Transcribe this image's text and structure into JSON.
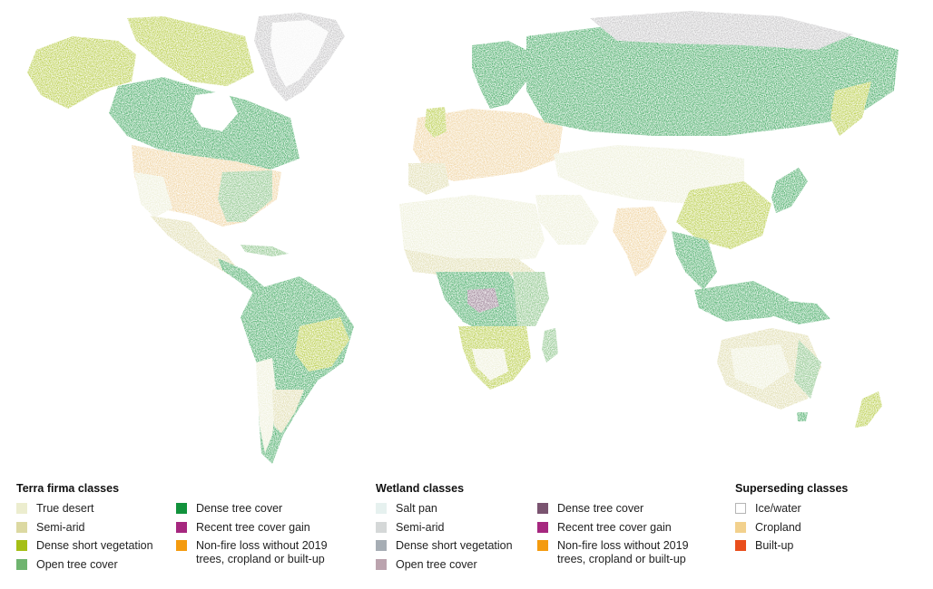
{
  "map": {
    "land_colors": {
      "desert": "#e9ebce",
      "semiarid": "#d8d49b",
      "short_veg": "#a7c11c",
      "open_tree": "#6eb56b",
      "dense_tree": "#1a9640",
      "cropland": "#ecc98a",
      "ice": "#f4f4f4",
      "tundra": "#b7b6b8",
      "builtup": "#e84d27",
      "wetland": "#7c5a74"
    }
  },
  "legend": {
    "groups": [
      {
        "id": "terra",
        "title": "Terra firma classes",
        "columns": [
          [
            {
              "label": "True desert",
              "color": "#ecedcf"
            },
            {
              "label": "Semi-arid",
              "color": "#dcd9a2"
            },
            {
              "label": "Dense short vegetation",
              "color": "#a5bf16"
            },
            {
              "label": "Open tree cover",
              "color": "#6fb46f"
            }
          ],
          [
            {
              "label": "Dense tree cover",
              "color": "#12923c"
            },
            {
              "label": "Recent tree cover gain",
              "color": "#a6277f"
            },
            {
              "label": "Non-fire loss without 2019\ntrees, cropland or built-up",
              "color": "#f49b0f"
            }
          ]
        ]
      },
      {
        "id": "wetland",
        "title": "Wetland classes",
        "columns": [
          [
            {
              "label": "Salt pan",
              "color": "#e6f1ef"
            },
            {
              "label": "Semi-arid",
              "color": "#d5d8d8"
            },
            {
              "label": "Dense short vegetation",
              "color": "#a6adb4"
            },
            {
              "label": "Open tree cover",
              "color": "#bba3ae"
            }
          ],
          [
            {
              "label": "Dense tree cover",
              "color": "#7a5470"
            },
            {
              "label": "Recent tree cover gain",
              "color": "#a6277f"
            },
            {
              "label": "Non-fire loss without 2019\ntrees, cropland or built-up",
              "color": "#f49b0f"
            }
          ]
        ]
      },
      {
        "id": "superseding",
        "title": "Superseding classes",
        "columns": [
          [
            {
              "label": "Ice/water",
              "color": "#ffffff",
              "outlined": true
            },
            {
              "label": "Cropland",
              "color": "#f2d18d"
            },
            {
              "label": "Built-up",
              "color": "#e94e1c"
            }
          ]
        ]
      }
    ]
  }
}
